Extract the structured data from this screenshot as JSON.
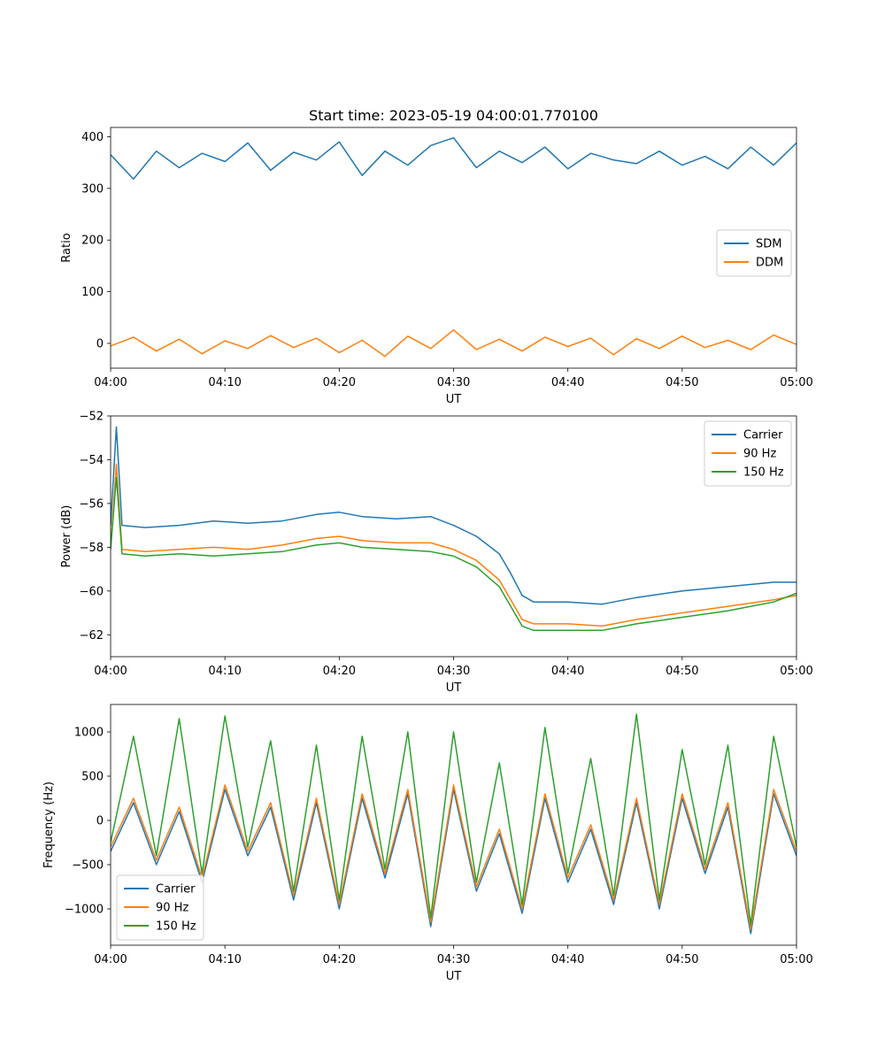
{
  "chart_data": [
    {
      "type": "line",
      "title": "Start time: 2023-05-19 04:00:01.770100",
      "xlabel": "UT",
      "ylabel": "Ratio",
      "xlim": [
        "04:00",
        "05:00"
      ],
      "xticks": [
        "04:00",
        "04:10",
        "04:20",
        "04:30",
        "04:40",
        "04:50",
        "05:00"
      ],
      "ylim": [
        -48,
        418
      ],
      "yticks": [
        0,
        100,
        200,
        300,
        400
      ],
      "legend": "center-right",
      "grid": false,
      "series": [
        {
          "name": "SDM",
          "color": "#1f77b4",
          "x": [
            "04:00",
            "04:02",
            "04:04",
            "04:06",
            "04:08",
            "04:10",
            "04:12",
            "04:14",
            "04:16",
            "04:18",
            "04:20",
            "04:22",
            "04:24",
            "04:26",
            "04:28",
            "04:30",
            "04:32",
            "04:34",
            "04:36",
            "04:38",
            "04:40",
            "04:42",
            "04:44",
            "04:46",
            "04:48",
            "04:50",
            "04:52",
            "04:54",
            "04:56",
            "04:58",
            "05:00"
          ],
          "values": [
            365,
            318,
            372,
            340,
            368,
            352,
            388,
            335,
            370,
            355,
            390,
            325,
            372,
            345,
            383,
            398,
            340,
            372,
            350,
            380,
            338,
            368,
            355,
            348,
            372,
            345,
            362,
            338,
            380,
            345,
            388
          ]
        },
        {
          "name": "DDM",
          "color": "#ff7f0e",
          "x": [
            "04:00",
            "04:02",
            "04:04",
            "04:06",
            "04:08",
            "04:10",
            "04:12",
            "04:14",
            "04:16",
            "04:18",
            "04:20",
            "04:22",
            "04:24",
            "04:26",
            "04:28",
            "04:30",
            "04:32",
            "04:34",
            "04:36",
            "04:38",
            "04:40",
            "04:42",
            "04:44",
            "04:46",
            "04:48",
            "04:50",
            "04:52",
            "04:54",
            "04:56",
            "04:58",
            "05:00"
          ],
          "values": [
            -5,
            12,
            -15,
            8,
            -20,
            5,
            -10,
            15,
            -8,
            10,
            -18,
            6,
            -25,
            14,
            -10,
            26,
            -12,
            8,
            -15,
            12,
            -6,
            10,
            -22,
            9,
            -10,
            14,
            -8,
            6,
            -12,
            16,
            -2
          ]
        }
      ]
    },
    {
      "type": "line",
      "xlabel": "UT",
      "ylabel": "Power (dB)",
      "xlim": [
        "04:00",
        "05:00"
      ],
      "xticks": [
        "04:00",
        "04:10",
        "04:20",
        "04:30",
        "04:40",
        "04:50",
        "05:00"
      ],
      "ylim": [
        -63,
        -52
      ],
      "yticks": [
        -62,
        -60,
        -58,
        -56,
        -54,
        -52
      ],
      "legend": "top-right",
      "grid": false,
      "series": [
        {
          "name": "Carrier",
          "color": "#1f77b4",
          "x": [
            "04:00",
            "04:00.5",
            "04:01",
            "04:03",
            "04:06",
            "04:09",
            "04:12",
            "04:15",
            "04:18",
            "04:20",
            "04:22",
            "04:25",
            "04:28",
            "04:30",
            "04:32",
            "04:34",
            "04:35",
            "04:36",
            "04:37",
            "04:40",
            "04:43",
            "04:46",
            "04:50",
            "04:54",
            "04:58",
            "05:00"
          ],
          "values": [
            -57,
            -52.5,
            -57,
            -57.1,
            -57,
            -56.8,
            -56.9,
            -56.8,
            -56.5,
            -56.4,
            -56.6,
            -56.7,
            -56.6,
            -57,
            -57.5,
            -58.3,
            -59.2,
            -60.2,
            -60.5,
            -60.5,
            -60.6,
            -60.3,
            -60,
            -59.8,
            -59.6,
            -59.6
          ]
        },
        {
          "name": "90 Hz",
          "color": "#ff7f0e",
          "x": [
            "04:00",
            "04:00.5",
            "04:01",
            "04:03",
            "04:06",
            "04:09",
            "04:12",
            "04:15",
            "04:18",
            "04:20",
            "04:22",
            "04:25",
            "04:28",
            "04:30",
            "04:32",
            "04:34",
            "04:35",
            "04:36",
            "04:37",
            "04:40",
            "04:43",
            "04:46",
            "04:50",
            "04:54",
            "04:58",
            "05:00"
          ],
          "values": [
            -58,
            -54.2,
            -58.1,
            -58.2,
            -58.1,
            -58,
            -58.1,
            -57.9,
            -57.6,
            -57.5,
            -57.7,
            -57.8,
            -57.8,
            -58.1,
            -58.6,
            -59.5,
            -60.4,
            -61.3,
            -61.5,
            -61.5,
            -61.6,
            -61.3,
            -61,
            -60.7,
            -60.4,
            -60.2
          ]
        },
        {
          "name": "150 Hz",
          "color": "#2ca02c",
          "x": [
            "04:00",
            "04:00.5",
            "04:01",
            "04:03",
            "04:06",
            "04:09",
            "04:12",
            "04:15",
            "04:18",
            "04:20",
            "04:22",
            "04:25",
            "04:28",
            "04:30",
            "04:32",
            "04:34",
            "04:35",
            "04:36",
            "04:37",
            "04:40",
            "04:43",
            "04:46",
            "04:50",
            "04:54",
            "04:58",
            "05:00"
          ],
          "values": [
            -58.1,
            -54.8,
            -58.3,
            -58.4,
            -58.3,
            -58.4,
            -58.3,
            -58.2,
            -57.9,
            -57.8,
            -58,
            -58.1,
            -58.2,
            -58.4,
            -58.9,
            -59.8,
            -60.7,
            -61.6,
            -61.8,
            -61.8,
            -61.8,
            -61.5,
            -61.2,
            -60.9,
            -60.5,
            -60.1
          ]
        }
      ]
    },
    {
      "type": "line",
      "xlabel": "UT",
      "ylabel": "Frequency (Hz)",
      "xlim": [
        "04:00",
        "05:00"
      ],
      "xticks": [
        "04:00",
        "04:10",
        "04:20",
        "04:30",
        "04:40",
        "04:50",
        "05:00"
      ],
      "ylim": [
        -1410,
        1310
      ],
      "yticks": [
        -1000,
        -500,
        0,
        500,
        1000
      ],
      "legend": "bottom-left",
      "grid": false,
      "series": [
        {
          "name": "Carrier",
          "color": "#1f77b4",
          "x": [
            "04:00",
            "04:02",
            "04:04",
            "04:06",
            "04:08",
            "04:10",
            "04:12",
            "04:14",
            "04:16",
            "04:18",
            "04:20",
            "04:22",
            "04:24",
            "04:26",
            "04:28",
            "04:30",
            "04:32",
            "04:34",
            "04:36",
            "04:38",
            "04:40",
            "04:42",
            "04:44",
            "04:46",
            "04:48",
            "04:50",
            "04:52",
            "04:54",
            "04:56",
            "04:58",
            "05:00"
          ],
          "values": [
            -350,
            200,
            -500,
            100,
            -700,
            350,
            -400,
            150,
            -900,
            200,
            -1000,
            250,
            -650,
            300,
            -1200,
            350,
            -800,
            -150,
            -1050,
            250,
            -700,
            -100,
            -950,
            200,
            -1000,
            250,
            -600,
            150,
            -1280,
            300,
            -400
          ]
        },
        {
          "name": "90 Hz",
          "color": "#ff7f0e",
          "x": [
            "04:00",
            "04:02",
            "04:04",
            "04:06",
            "04:08",
            "04:10",
            "04:12",
            "04:14",
            "04:16",
            "04:18",
            "04:20",
            "04:22",
            "04:24",
            "04:26",
            "04:28",
            "04:30",
            "04:32",
            "04:34",
            "04:36",
            "04:38",
            "04:40",
            "04:42",
            "04:44",
            "04:46",
            "04:48",
            "04:50",
            "04:52",
            "04:54",
            "04:56",
            "04:58",
            "05:00"
          ],
          "values": [
            -300,
            250,
            -450,
            150,
            -650,
            400,
            -350,
            200,
            -850,
            250,
            -950,
            300,
            -600,
            350,
            -1150,
            400,
            -750,
            -100,
            -1000,
            300,
            -650,
            -50,
            -900,
            250,
            -950,
            300,
            -550,
            200,
            -1230,
            350,
            -350
          ]
        },
        {
          "name": "150 Hz",
          "color": "#2ca02c",
          "x": [
            "04:00",
            "04:02",
            "04:04",
            "04:06",
            "04:08",
            "04:10",
            "04:12",
            "04:14",
            "04:16",
            "04:18",
            "04:20",
            "04:22",
            "04:24",
            "04:26",
            "04:28",
            "04:30",
            "04:32",
            "04:34",
            "04:36",
            "04:38",
            "04:40",
            "04:42",
            "04:44",
            "04:46",
            "04:48",
            "04:50",
            "04:52",
            "04:54",
            "04:56",
            "04:58",
            "05:00"
          ],
          "values": [
            -250,
            950,
            -400,
            1150,
            -600,
            1180,
            -300,
            900,
            -800,
            850,
            -900,
            950,
            -550,
            1000,
            -1100,
            1000,
            -700,
            650,
            -950,
            1050,
            -600,
            700,
            -850,
            1200,
            -900,
            800,
            -500,
            850,
            -1180,
            950,
            -300
          ]
        }
      ]
    }
  ]
}
